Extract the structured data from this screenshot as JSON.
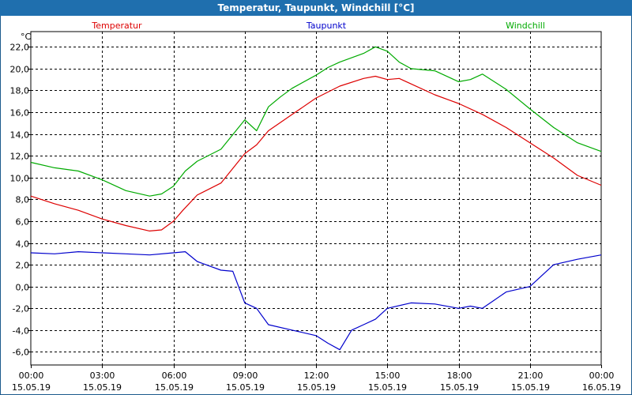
{
  "window": {
    "title": "Temperatur, Taupunkt, Windchill [°C]"
  },
  "chart_data": {
    "type": "line",
    "title": "Temperatur, Taupunkt, Windchill [°C]",
    "ylabel": "°C",
    "xlabel": "",
    "ylim": [
      -7.2,
      23.4
    ],
    "xlim": [
      0,
      24
    ],
    "grid": true,
    "y_ticks": [
      -6,
      -4,
      -2,
      0,
      2,
      4,
      6,
      8,
      10,
      12,
      14,
      16,
      18,
      20,
      22
    ],
    "y_tick_labels": [
      "-6,0",
      "-4,0",
      "-2,0",
      "0,0",
      "2,0",
      "4,0",
      "6,0",
      "8,0",
      "10,0",
      "12,0",
      "14,0",
      "16,0",
      "18,0",
      "20,0",
      "22,0"
    ],
    "x_ticks": [
      0,
      3,
      6,
      9,
      12,
      15,
      18,
      21,
      24
    ],
    "x_tick_labels": [
      {
        "time": "00:00",
        "date": "15.05.19"
      },
      {
        "time": "03:00",
        "date": "15.05.19"
      },
      {
        "time": "06:00",
        "date": "15.05.19"
      },
      {
        "time": "09:00",
        "date": "15.05.19"
      },
      {
        "time": "12:00",
        "date": "15.05.19"
      },
      {
        "time": "15:00",
        "date": "15.05.19"
      },
      {
        "time": "18:00",
        "date": "15.05.19"
      },
      {
        "time": "21:00",
        "date": "15.05.19"
      },
      {
        "time": "00:00",
        "date": "16.05.19"
      }
    ],
    "legend": [
      "Temperatur",
      "Taupunkt",
      "Windchill"
    ],
    "series": [
      {
        "name": "Temperatur",
        "color": "#dd0000",
        "x": [
          0,
          1,
          2,
          3,
          4,
          5,
          5.5,
          6,
          6.4,
          7,
          8,
          9,
          9.5,
          10,
          11,
          12,
          13,
          14,
          14.5,
          15,
          15.5,
          16,
          17,
          18,
          19,
          20,
          21,
          22,
          23,
          24
        ],
        "values": [
          8.3,
          7.6,
          7.0,
          6.2,
          5.6,
          5.1,
          5.2,
          6.0,
          7.0,
          8.4,
          9.5,
          12.2,
          13.0,
          14.3,
          15.8,
          17.3,
          18.4,
          19.1,
          19.3,
          19.0,
          19.1,
          18.6,
          17.6,
          16.8,
          15.8,
          14.6,
          13.2,
          11.8,
          10.2,
          9.3
        ]
      },
      {
        "name": "Taupunkt",
        "color": "#0000cc",
        "x": [
          0,
          1,
          2,
          3,
          4,
          5,
          6,
          6.5,
          7,
          8,
          8.5,
          9,
          9.5,
          10,
          11,
          12,
          12.5,
          13,
          13.5,
          14,
          14.5,
          15,
          16,
          17,
          18,
          18.5,
          19,
          20,
          21,
          22,
          23,
          24
        ],
        "values": [
          3.1,
          3.0,
          3.2,
          3.1,
          3.0,
          2.9,
          3.1,
          3.2,
          2.3,
          1.5,
          1.4,
          -1.5,
          -2.0,
          -3.5,
          -4.0,
          -4.5,
          -5.2,
          -5.8,
          -4.0,
          -3.5,
          -3.0,
          -2.0,
          -1.5,
          -1.6,
          -2.0,
          -1.8,
          -2.0,
          -0.5,
          0.0,
          2.0,
          2.5,
          2.9
        ]
      },
      {
        "name": "Windchill",
        "color": "#00aa00",
        "x": [
          0,
          1,
          2,
          3,
          4,
          5,
          5.5,
          6,
          6.5,
          7,
          8,
          9,
          9.5,
          10,
          10.5,
          11,
          12,
          12.5,
          13,
          14,
          14.5,
          15,
          15.5,
          16,
          17,
          18,
          18.5,
          19,
          20,
          21,
          22,
          23,
          24
        ],
        "values": [
          11.4,
          10.9,
          10.6,
          9.8,
          8.8,
          8.3,
          8.5,
          9.2,
          10.6,
          11.5,
          12.6,
          15.3,
          14.3,
          16.5,
          17.4,
          18.2,
          19.4,
          20.1,
          20.6,
          21.4,
          22.0,
          21.6,
          20.6,
          20.0,
          19.8,
          18.8,
          19.0,
          19.5,
          18.1,
          16.3,
          14.6,
          13.2,
          12.4
        ]
      }
    ]
  }
}
